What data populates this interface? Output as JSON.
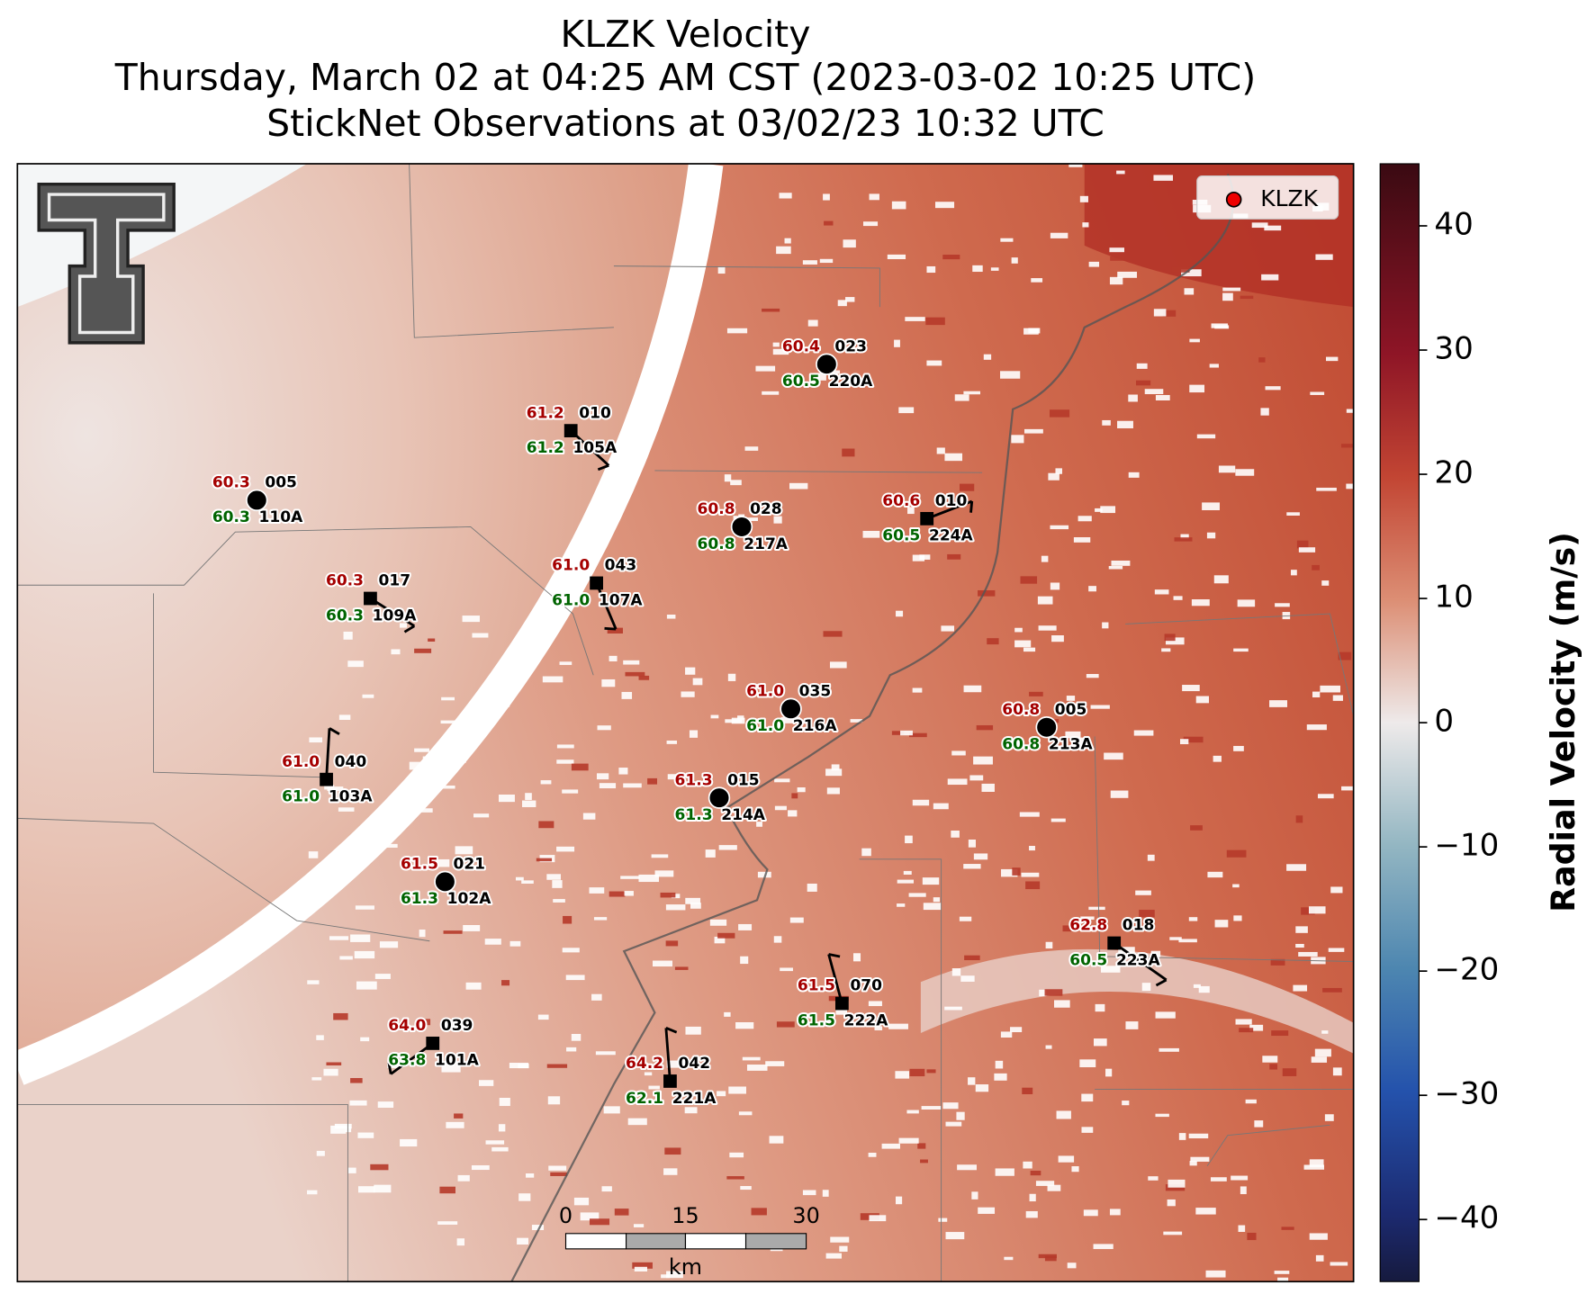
{
  "title": {
    "lines": [
      "KLZK Velocity",
      "Thursday, March 02 at 04:25 AM CST (2023-03-02 10:25 UTC)",
      "StickNet Observations at 03/02/23 10:32 UTC"
    ]
  },
  "legend": {
    "label": "KLZK"
  },
  "colorbar": {
    "label": "Radial Velocity (m/s)",
    "range": [
      -45,
      45
    ],
    "ticks": [
      40,
      30,
      20,
      10,
      0,
      {
        "value": -10,
        "label": "−10"
      },
      {
        "value": -20,
        "label": "−20"
      },
      {
        "value": -30,
        "label": "−30"
      },
      {
        "value": -40,
        "label": "−40"
      }
    ]
  },
  "scale_bar": {
    "ticks": [
      "0",
      "15",
      "30"
    ],
    "unit": "km"
  },
  "stations": [
    {
      "id": "110A",
      "temperature": "60.3",
      "code": "005",
      "dewpoint": "60.3"
    },
    {
      "id": "105A",
      "temperature": "61.2",
      "code": "010",
      "dewpoint": "61.2"
    },
    {
      "id": "220A",
      "temperature": "60.4",
      "code": "023",
      "dewpoint": "60.5"
    },
    {
      "id": "217A",
      "temperature": "60.8",
      "code": "028",
      "dewpoint": "60.8"
    },
    {
      "id": "224A",
      "temperature": "60.6",
      "code": "010",
      "dewpoint": "60.5"
    },
    {
      "id": "109A",
      "temperature": "60.3",
      "code": "017",
      "dewpoint": "60.3"
    },
    {
      "id": "107A",
      "temperature": "61.0",
      "code": "043",
      "dewpoint": "61.0"
    },
    {
      "id": "216A",
      "temperature": "61.0",
      "code": "035",
      "dewpoint": "61.0"
    },
    {
      "id": "213A",
      "temperature": "60.8",
      "code": "005",
      "dewpoint": "60.8"
    },
    {
      "id": "103A",
      "temperature": "61.0",
      "code": "040",
      "dewpoint": "61.0"
    },
    {
      "id": "214A",
      "temperature": "61.3",
      "code": "015",
      "dewpoint": "61.3"
    },
    {
      "id": "102A",
      "temperature": "61.5",
      "code": "021",
      "dewpoint": "61.3"
    },
    {
      "id": "223A",
      "temperature": "62.8",
      "code": "018",
      "dewpoint": "60.5"
    },
    {
      "id": "222A",
      "temperature": "61.5",
      "code": "070",
      "dewpoint": "61.5"
    },
    {
      "id": "101A",
      "temperature": "64.0",
      "code": "039",
      "dewpoint": "63.8"
    },
    {
      "id": "221A",
      "temperature": "64.2",
      "code": "042",
      "dewpoint": "62.1"
    }
  ]
}
